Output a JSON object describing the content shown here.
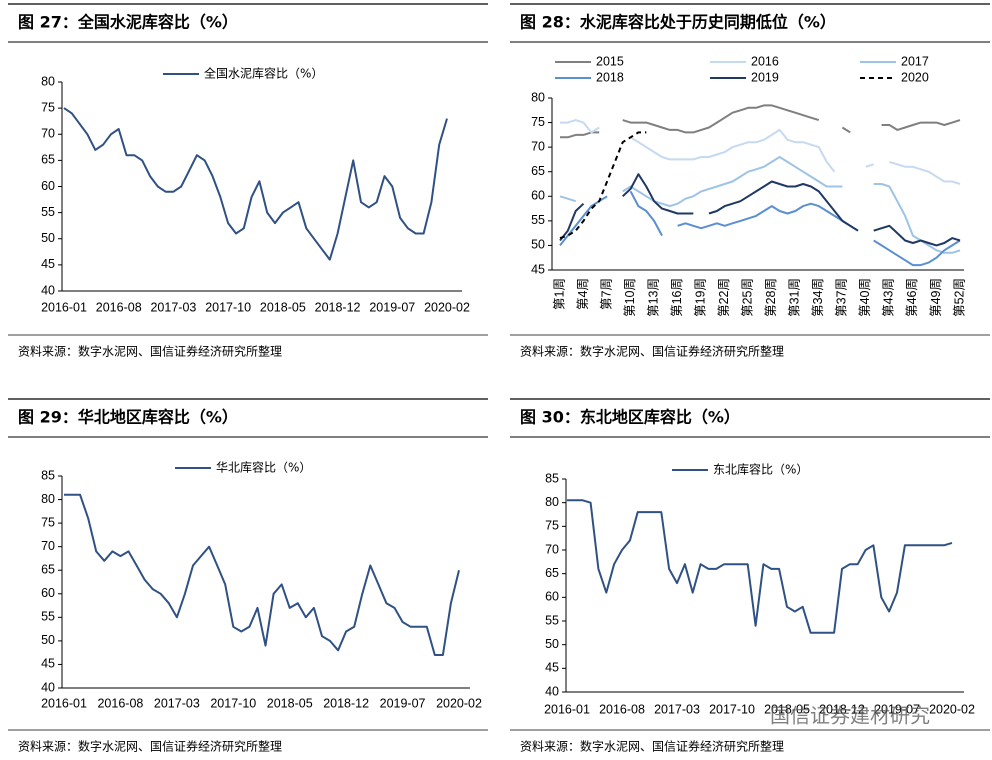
{
  "chart_data": [
    {
      "type": "line",
      "title": "图 27：全国水泥库容比（%）",
      "source": "资料来源：数字水泥网、国信证券经济研究所整理",
      "categories": [
        "2016-01",
        null,
        null,
        null,
        null,
        null,
        null,
        "2016-08",
        null,
        null,
        null,
        null,
        null,
        null,
        "2017-03",
        null,
        null,
        null,
        null,
        null,
        null,
        "2017-10",
        null,
        null,
        null,
        null,
        null,
        null,
        "2018-05",
        null,
        null,
        null,
        null,
        null,
        null,
        "2018-12",
        null,
        null,
        null,
        null,
        null,
        null,
        "2019-07",
        null,
        null,
        null,
        null,
        null,
        null,
        "2020-02"
      ],
      "series": [
        {
          "name": "全国水泥库容比（%）",
          "color": "#2f5183",
          "values": [
            75,
            74,
            72,
            70,
            67,
            68,
            70,
            71,
            66,
            66,
            65,
            62,
            60,
            59,
            59,
            60,
            63,
            66,
            65,
            62,
            58,
            53,
            51,
            52,
            58,
            61,
            55,
            53,
            55,
            56,
            57,
            52,
            50,
            48,
            46,
            51,
            58,
            65,
            57,
            56,
            57,
            62,
            60,
            54,
            52,
            51,
            51,
            57,
            68,
            73
          ]
        }
      ],
      "ylim": [
        40,
        80
      ],
      "yticks": [
        40,
        45,
        50,
        55,
        60,
        65,
        70,
        75,
        80
      ]
    },
    {
      "type": "line",
      "title": "图 28：水泥库容比处于历史同期低位（%）",
      "source": "资料来源：数字水泥网、国信证券经济研究所整理",
      "categories": [
        "第1周",
        null,
        null,
        "第4周",
        null,
        null,
        "第7周",
        null,
        null,
        "第10周",
        null,
        null,
        "第13周",
        null,
        null,
        "第16周",
        null,
        null,
        "第19周",
        null,
        null,
        "第22周",
        null,
        null,
        "第25周",
        null,
        null,
        "第28周",
        null,
        null,
        "第31周",
        null,
        null,
        "第34周",
        null,
        null,
        "第37周",
        null,
        null,
        "第40周",
        null,
        null,
        "第43周",
        null,
        null,
        "第46周",
        null,
        null,
        "第49周",
        null,
        null,
        "第52周"
      ],
      "series": [
        {
          "name": "2015",
          "color": "#7f7f7f",
          "values": [
            72,
            72,
            72.5,
            72.5,
            73,
            73,
            null,
            null,
            75.5,
            75,
            75,
            75,
            74.5,
            74,
            73.5,
            73.5,
            73,
            73,
            73.5,
            74,
            75,
            76,
            77,
            77.5,
            78,
            78,
            78.5,
            78.5,
            78,
            77.5,
            77,
            76.5,
            76,
            75.5,
            null,
            null,
            74,
            73,
            null,
            null,
            null,
            74.5,
            74.5,
            73.5,
            74,
            74.5,
            75,
            75,
            75,
            74.5,
            75,
            75.5
          ]
        },
        {
          "name": "2016",
          "color": "#c5d9f1",
          "values": [
            75,
            75,
            75.5,
            75,
            73,
            74,
            null,
            null,
            null,
            72,
            71,
            70,
            69,
            68,
            67.5,
            67.5,
            67.5,
            67.5,
            68,
            68,
            68.5,
            69,
            70,
            70.5,
            71,
            71,
            71.5,
            72.5,
            73.5,
            71.5,
            71,
            71,
            70.5,
            70,
            67,
            65,
            null,
            null,
            null,
            66,
            66.5,
            null,
            67,
            66.5,
            66,
            66,
            65.5,
            65,
            64,
            63,
            63,
            62.5
          ]
        },
        {
          "name": "2017",
          "color": "#9dc3e6",
          "values": [
            60,
            59.5,
            59,
            null,
            null,
            null,
            null,
            null,
            61,
            62,
            61,
            60,
            59,
            58.5,
            58,
            58.5,
            59.5,
            60,
            61,
            61.5,
            62,
            62.5,
            63,
            64,
            65,
            65.5,
            66,
            67,
            68,
            67,
            66,
            65,
            64,
            63,
            62,
            62,
            62,
            null,
            null,
            null,
            62.5,
            62.5,
            62,
            59,
            56,
            52,
            51,
            50,
            49,
            48.5,
            48.5,
            49
          ]
        },
        {
          "name": "2018",
          "color": "#5b8fd0",
          "values": [
            50,
            52,
            54,
            56,
            58,
            59,
            60,
            null,
            null,
            61,
            58,
            57,
            55,
            52,
            null,
            54,
            54.5,
            54,
            53.5,
            54,
            54.5,
            54,
            54.5,
            55,
            55.5,
            56,
            57,
            58,
            57,
            56.5,
            57,
            58,
            58.5,
            58,
            57,
            56,
            55,
            54,
            53,
            null,
            51,
            50,
            49,
            48,
            47,
            46,
            46,
            46.5,
            47.5,
            49,
            50,
            51
          ]
        },
        {
          "name": "2019",
          "color": "#1f3864",
          "values": [
            51,
            53,
            57,
            58.5,
            null,
            null,
            null,
            null,
            60,
            61.5,
            64.5,
            62,
            59,
            57.5,
            57,
            56.5,
            56.5,
            56.5,
            null,
            56.5,
            57,
            58,
            58.5,
            59,
            60,
            61,
            62,
            63,
            62.5,
            62,
            62,
            62.5,
            62,
            61,
            59,
            57,
            55,
            54,
            53,
            null,
            53,
            53.5,
            54,
            52.5,
            51,
            50.5,
            51,
            50.5,
            50,
            50.5,
            51.5,
            51
          ]
        },
        {
          "name": "2020",
          "color": "#000000",
          "dash": true,
          "values": [
            51.5,
            52,
            53,
            55,
            57.5,
            59,
            63,
            67,
            71,
            72,
            73,
            73,
            null,
            null,
            null,
            null,
            null,
            null,
            null,
            null,
            null,
            null,
            null,
            null,
            null,
            null,
            null,
            null,
            null,
            null,
            null,
            null,
            null,
            null,
            null,
            null,
            null,
            null,
            null,
            null,
            null,
            null,
            null,
            null,
            null,
            null,
            null,
            null,
            null,
            null,
            null,
            null
          ]
        }
      ],
      "ylim": [
        45,
        80
      ],
      "yticks": [
        45,
        50,
        55,
        60,
        65,
        70,
        75,
        80
      ]
    },
    {
      "type": "line",
      "title": "图 29：华北地区库容比（%）",
      "source": "资料来源：数字水泥网、国信证券经济研究所整理",
      "categories": [
        "2016-01",
        null,
        null,
        null,
        null,
        null,
        null,
        "2016-08",
        null,
        null,
        null,
        null,
        null,
        null,
        "2017-03",
        null,
        null,
        null,
        null,
        null,
        null,
        "2017-10",
        null,
        null,
        null,
        null,
        null,
        null,
        "2018-05",
        null,
        null,
        null,
        null,
        null,
        null,
        "2018-12",
        null,
        null,
        null,
        null,
        null,
        null,
        "2019-07",
        null,
        null,
        null,
        null,
        null,
        null,
        "2020-02"
      ],
      "series": [
        {
          "name": "华北库容比（%）",
          "color": "#2f5183",
          "values": [
            81,
            81,
            81,
            76,
            69,
            67,
            69,
            68,
            69,
            66,
            63,
            61,
            60,
            58,
            55,
            60,
            66,
            68,
            70,
            66,
            62,
            53,
            52,
            53,
            57,
            49,
            60,
            62,
            57,
            58,
            55,
            57,
            51,
            50,
            48,
            52,
            53,
            60,
            66,
            62,
            58,
            57,
            54,
            53,
            53,
            53,
            47,
            47,
            58,
            65
          ]
        }
      ],
      "ylim": [
        40,
        85
      ],
      "yticks": [
        40,
        45,
        50,
        55,
        60,
        65,
        70,
        75,
        80,
        85
      ]
    },
    {
      "type": "line",
      "title": "图 30：东北地区库容比（%）",
      "source": "资料来源：数字水泥网、国信证券经济研究所整理",
      "watermark": "国信证券建材研究",
      "categories": [
        "2016-01",
        null,
        null,
        null,
        null,
        null,
        null,
        "2016-08",
        null,
        null,
        null,
        null,
        null,
        null,
        "2017-03",
        null,
        null,
        null,
        null,
        null,
        null,
        "2017-10",
        null,
        null,
        null,
        null,
        null,
        null,
        "2018-05",
        null,
        null,
        null,
        null,
        null,
        null,
        "2018-12",
        null,
        null,
        null,
        null,
        null,
        null,
        "2019-07",
        null,
        null,
        null,
        null,
        null,
        null,
        "2020-02"
      ],
      "series": [
        {
          "name": "东北库容比（%）",
          "color": "#2f5183",
          "values": [
            80.5,
            80.5,
            80.5,
            80,
            66,
            61,
            67,
            70,
            72,
            78,
            78,
            78,
            78,
            66,
            63,
            67,
            61,
            67,
            66,
            66,
            67,
            67,
            67,
            67,
            54,
            67,
            66,
            66,
            58,
            57,
            58,
            52.5,
            52.5,
            52.5,
            52.5,
            66,
            67,
            67,
            70,
            71,
            60,
            57,
            61,
            71,
            71,
            71,
            71,
            71,
            71,
            71.5
          ]
        }
      ],
      "ylim": [
        40,
        85
      ],
      "yticks": [
        40,
        45,
        50,
        55,
        60,
        65,
        70,
        75,
        80,
        85
      ]
    }
  ]
}
